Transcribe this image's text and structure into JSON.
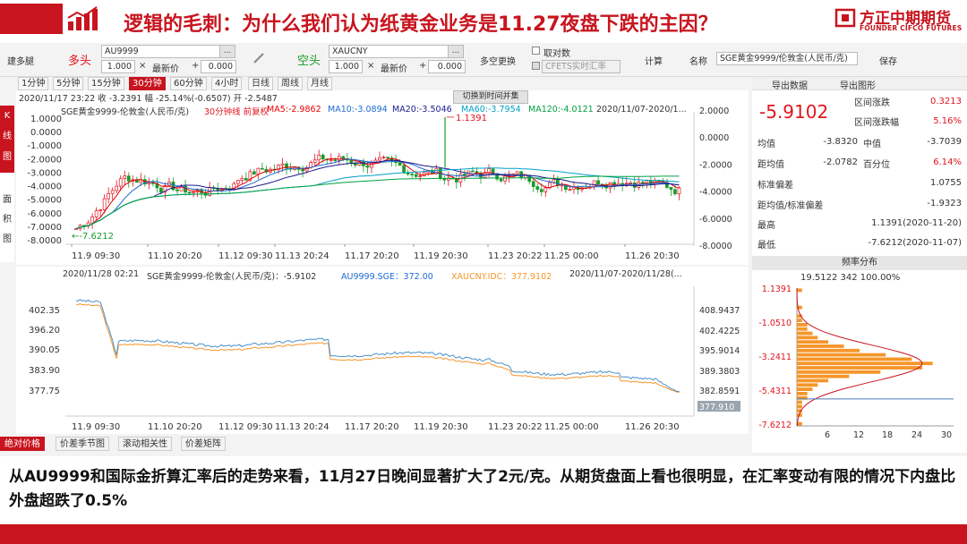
{
  "header": {
    "title": "逻辑的毛刺：为什么我们认为纸黄金业务是11.27夜盘下跌的主因？",
    "brand_cn": "方正中期期货",
    "brand_en": "FOUNDER CIFCO FUTURES"
  },
  "toolbar": {
    "build_spread": "建多腿",
    "long_label": "多头",
    "long_symbol": "AU9999",
    "long_qty": "1.000",
    "times": "×",
    "latest": "最新价",
    "plus": "+",
    "long_offset": "0.000",
    "short_label": "空头",
    "short_symbol": "XAUCNY",
    "short_qty": "1.000",
    "short_offset": "0.000",
    "swap": "多空更换",
    "reciprocal": "取对数",
    "cfets": "CFETS实时汇率",
    "calc": "计算",
    "name_label": "名称",
    "name_value": "SGE黄金9999/伦敦金(人民币/克)",
    "save": "保存",
    "dots": "..."
  },
  "tabs": [
    "1分钟",
    "5分钟",
    "15分钟",
    "30分钟",
    "60分钟",
    "4小时",
    "日线",
    "周线",
    "月线"
  ],
  "active_tab": "30分钟",
  "left_strip": {
    "k": "K\n线\n图",
    "area": "面\n积\n图"
  },
  "chart1": {
    "info": "2020/11/17 23:22  收 -3.2391  幅 -25.14%(-0.6507)  开 -2.5487",
    "switch_btn": "切换到时间并集",
    "legend_name": "SGE黄金9999-伦敦金(人民币/克)",
    "legend_period": "30分钟线 前复权",
    "ma5": "MA5:-2.9862",
    "ma10": "MA10:-3.0894",
    "ma20": "MA20:-3.5046",
    "ma60": "MA60:-3.7954",
    "ma120": "MA120:-4.0121",
    "range": "2020/11/07-2020/1...",
    "yleft": [
      "1.0000",
      "0.0000",
      "-1.0000",
      "-2.0000",
      "-3.0000",
      "-4.0000",
      "-5.0000",
      "-6.0000",
      "-7.0000",
      "-8.0000"
    ],
    "yright": [
      "2.0000",
      "0.0000",
      "-2.0000",
      "-4.0000",
      "-6.0000",
      "-8.0000"
    ],
    "xlabels": [
      "11.9 09:30",
      "11.10 20:20",
      "11.12 09:30",
      "11.13 20:24",
      "11.17 20:20",
      "11.19 20:30",
      "11.23 20:22",
      "11.25 00:00",
      "11.26 20:30"
    ],
    "max_label": "1.1391",
    "min_label": "-7.6212"
  },
  "chart2": {
    "info_time": "2020/11/28 02:21",
    "info_name": "SGE黄金9999-伦敦金(人民币/克)：-5.9102",
    "info_au": "AU9999.SGE：372.00",
    "info_xau": "XAUCNY.IDC：377.9102",
    "info_range": "2020/11/07-2020/11/28(...",
    "yleft": [
      "402.35",
      "396.20",
      "390.05",
      "383.90",
      "377.75"
    ],
    "yright": [
      "408.9437",
      "402.4225",
      "395.9014",
      "389.3803",
      "382.8591",
      "377.910"
    ],
    "xlabels": [
      "11.9 09:30",
      "11.10 20:20",
      "11.12 09:30",
      "11.13 20:24",
      "11.17 20:20",
      "11.19 20:30",
      "11.23 20:22",
      "11.25 00:00",
      "11.26 20:30"
    ]
  },
  "bottom_tabs": [
    "绝对价格",
    "价差季节图",
    "滚动相关性",
    "价差矩阵"
  ],
  "right_panel": {
    "export_data": "导出数据",
    "export_chart": "导出图形",
    "big_value": "-5.9102",
    "range_change_label": "区间涨跌",
    "range_change": "0.3213",
    "range_pct_label": "区间涨跌幅",
    "range_pct": "5.16%",
    "mean_label": "均值",
    "mean": "-3.8320",
    "median_label": "中值",
    "median": "-3.7039",
    "dist_mean_label": "距均值",
    "dist_mean": "-2.0782",
    "pctile_label": "百分位",
    "pctile": "6.14%",
    "std_label": "标准偏差",
    "std": "1.0755",
    "ratio_label": "距均值/标准偏差",
    "ratio": "-1.9323",
    "high_label": "最高",
    "high": "1.1391(2020-11-20)",
    "low_label": "最低",
    "low": "-7.6212(2020-11-07)",
    "dist_title": "频率分布",
    "dist_info": "19.5122  342  100.00%",
    "dist_y": [
      "1.1391",
      "-1.0510",
      "-3.2411",
      "-5.4311",
      "-7.6212"
    ],
    "dist_x": [
      "6",
      "12",
      "18",
      "24",
      "30"
    ]
  },
  "caption": "从AU9999和国际金折算汇率后的走势来看，11月27日晚间显著扩大了2元/克。从期货盘面上看也很明显，在汇率变动有限的情况下内盘比外盘超跌了0.5%",
  "colors": {
    "accent": "#c8141e",
    "ma5": "#e60000",
    "ma10": "#1e6ad2",
    "ma20": "#1a1a8c",
    "ma60": "#00a0c8",
    "ma120": "#00a040",
    "au": "#4a90c8",
    "xau": "#f5962a"
  }
}
